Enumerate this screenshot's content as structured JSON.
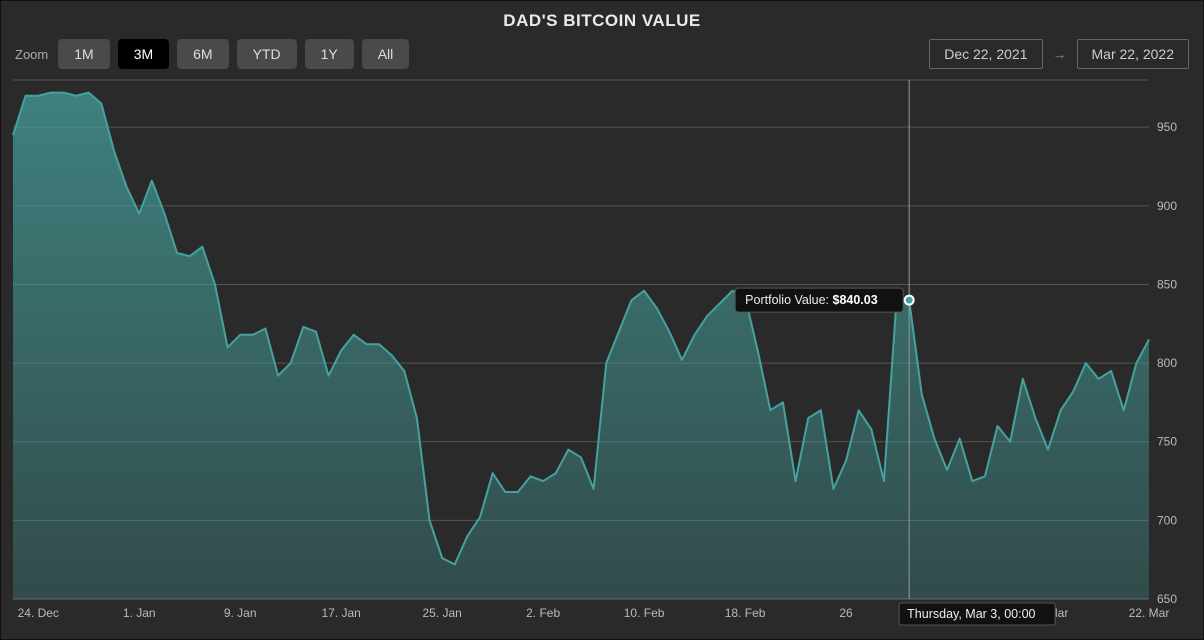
{
  "title": "DAD'S BITCOIN VALUE",
  "toolbar": {
    "zoom_label": "Zoom",
    "buttons": [
      {
        "label": "1M",
        "active": false
      },
      {
        "label": "3M",
        "active": true
      },
      {
        "label": "6M",
        "active": false
      },
      {
        "label": "YTD",
        "active": false
      },
      {
        "label": "1Y",
        "active": false
      },
      {
        "label": "All",
        "active": false
      }
    ],
    "range_from": "Dec 22, 2021",
    "range_to": "Mar 22, 2022",
    "range_arrow": "→"
  },
  "chart": {
    "type": "area",
    "background_color": "#2a2a2a",
    "grid_color": "#555555",
    "axis_text_color": "#bbbbbb",
    "series_color": "#45a29e",
    "series_fill_top": "rgba(69,162,158,0.72)",
    "series_fill_bottom": "rgba(69,162,158,0.28)",
    "line_width": 2,
    "y": {
      "lim": [
        650,
        980
      ],
      "ticks": [
        650,
        700,
        750,
        800,
        850,
        900,
        950
      ]
    },
    "x": {
      "start": "2021-12-22",
      "end": "2022-03-22",
      "ticks": [
        {
          "i": 2,
          "label": "24. Dec"
        },
        {
          "i": 10,
          "label": "1. Jan"
        },
        {
          "i": 18,
          "label": "9. Jan"
        },
        {
          "i": 26,
          "label": "17. Jan"
        },
        {
          "i": 34,
          "label": "25. Jan"
        },
        {
          "i": 42,
          "label": "2. Feb"
        },
        {
          "i": 50,
          "label": "10. Feb"
        },
        {
          "i": 58,
          "label": "18. Feb"
        },
        {
          "i": 66,
          "label": "26"
        },
        {
          "i": 82,
          "label": "14. Mar"
        },
        {
          "i": 90,
          "label": "22. Mar"
        }
      ]
    },
    "values": [
      945,
      970,
      970,
      972,
      972,
      970,
      972,
      965,
      935,
      912,
      895,
      916,
      895,
      870,
      868,
      874,
      850,
      810,
      818,
      818,
      822,
      792,
      800,
      823,
      820,
      792,
      808,
      818,
      812,
      812,
      805,
      795,
      765,
      700,
      676,
      672,
      690,
      702,
      730,
      718,
      718,
      728,
      725,
      730,
      745,
      740,
      720,
      800,
      820,
      840,
      846,
      835,
      820,
      802,
      818,
      830,
      838,
      846,
      842,
      808,
      770,
      775,
      725,
      765,
      770,
      720,
      738,
      770,
      758,
      725,
      840,
      840,
      780,
      752,
      732,
      752,
      725,
      728,
      760,
      750,
      790,
      765,
      745,
      770,
      782,
      800,
      790,
      795,
      770,
      800,
      815
    ],
    "tooltip": {
      "index": 71,
      "value": 840.03,
      "series_label": "Portfolio Value:",
      "value_text": "$840.03",
      "x_label": "Thursday, Mar 3, 00:00",
      "marker_fill": "#45a29e",
      "marker_stroke": "#ffffff"
    }
  }
}
